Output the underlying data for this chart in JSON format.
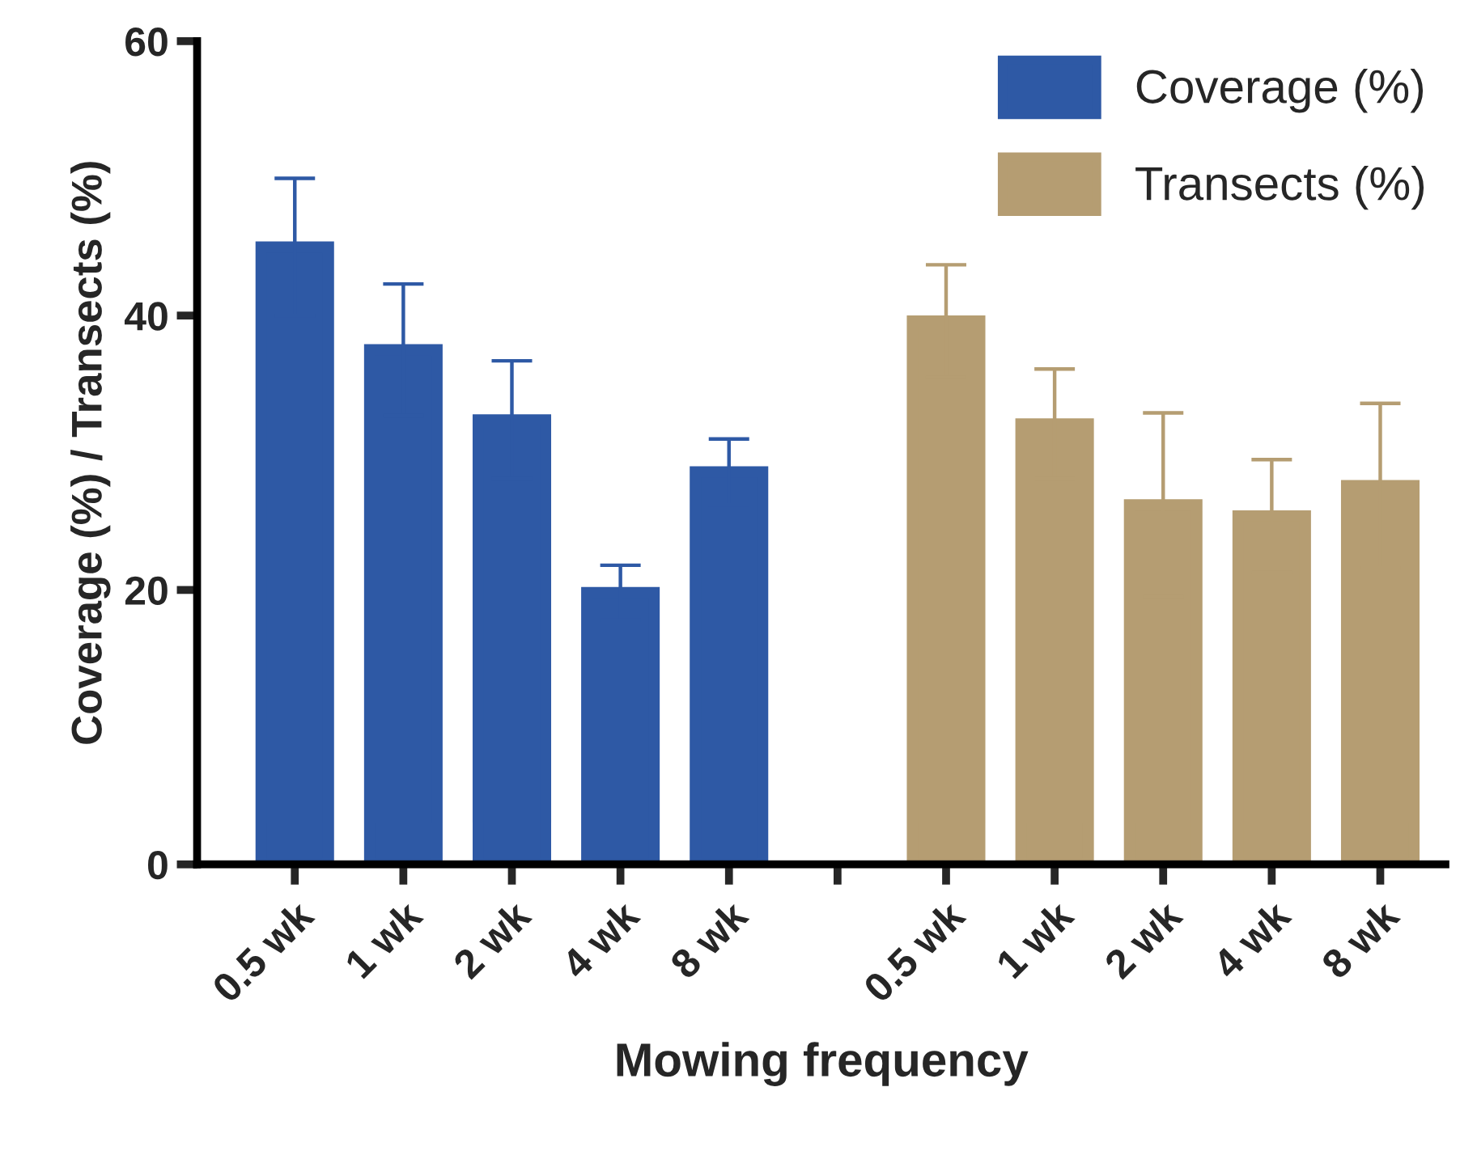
{
  "chart_data": {
    "type": "bar",
    "xlabel": "Mowing frequency",
    "ylabel": "Coverage (%) / Transects (%)",
    "categories": [
      "0.5 wk",
      "1 wk",
      "2 wk",
      "4 wk",
      "8 wk",
      null,
      "0.5 wk",
      "1 wk",
      "2 wk",
      "4 wk",
      "8 wk"
    ],
    "series": [
      {
        "name": "Coverage (%)",
        "color": "#2e59a5",
        "values": [
          45,
          37.5,
          32.4,
          19.8,
          28.6,
          null,
          null,
          null,
          null,
          null,
          null
        ],
        "errors": [
          5,
          4.8,
          4.3,
          2,
          2.4,
          null,
          null,
          null,
          null,
          null,
          null
        ]
      },
      {
        "name": "Transects (%)",
        "color": "#b59d72",
        "values": [
          null,
          null,
          null,
          null,
          null,
          null,
          39.6,
          32.1,
          26.2,
          25.4,
          27.6
        ],
        "errors": [
          null,
          null,
          null,
          null,
          null,
          null,
          4.1,
          4,
          6.7,
          4.1,
          6
        ]
      }
    ],
    "ylim": [
      0,
      60
    ],
    "yticks": [
      0,
      20,
      40,
      60
    ],
    "grid": false,
    "legend": "top right"
  }
}
